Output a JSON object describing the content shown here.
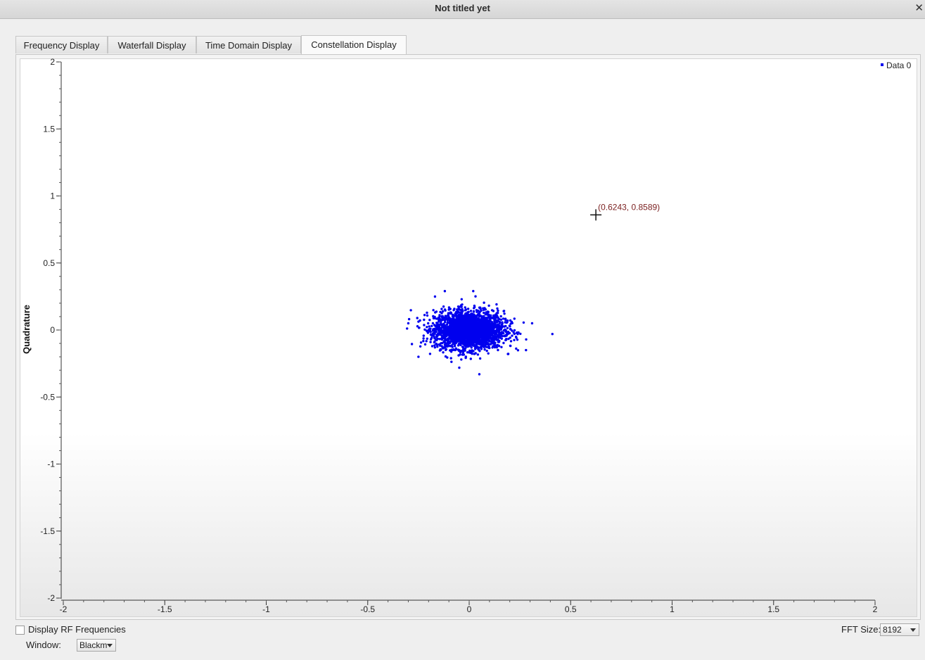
{
  "window": {
    "title": "Not titled yet",
    "close_glyph": "✕"
  },
  "tabs": [
    {
      "label": "Frequency Display",
      "active": false
    },
    {
      "label": "Waterfall Display",
      "active": false
    },
    {
      "label": "Time Domain Display",
      "active": false
    },
    {
      "label": "Constellation Display",
      "active": true
    }
  ],
  "controls": {
    "rf_checkbox_label": "Display RF Frequencies",
    "rf_checked": false,
    "fft_size_label": "FFT Size:",
    "fft_size_value": "8192",
    "window_label": "Window:",
    "window_value": "Blackm"
  },
  "chart_data": {
    "type": "scatter",
    "ylabel": "Quadrature",
    "xlabel": "",
    "xlim": [
      -2,
      2
    ],
    "ylim": [
      -2,
      2
    ],
    "x_ticks": [
      "-2",
      "-1.5",
      "-1",
      "-0.5",
      "0",
      "0.5",
      "1",
      "1.5",
      "2"
    ],
    "y_ticks": [
      "2",
      "1.5",
      "1",
      "0.5",
      "0",
      "-0.5",
      "-1",
      "-1.5",
      "-2"
    ],
    "legend": {
      "position": "top-right",
      "entries": [
        {
          "name": "Data 0",
          "color": "#0000ee"
        }
      ]
    },
    "cursor": {
      "x": 0.6243,
      "y": 0.8589,
      "label": "(0.6243, 0.8589)",
      "label_color": "#7a1f1f"
    },
    "series": [
      {
        "name": "Data 0",
        "color": "#0000ee",
        "cloud": {
          "center_x": 0.0,
          "center_y": 0.0,
          "sigma_x": 0.085,
          "sigma_y": 0.07,
          "count": 2600
        },
        "outliers": [
          [
            0.41,
            -0.03
          ],
          [
            0.31,
            0.05
          ],
          [
            -0.3,
            0.05
          ],
          [
            0.28,
            -0.15
          ],
          [
            -0.25,
            -0.2
          ],
          [
            0.02,
            0.29
          ],
          [
            -0.12,
            0.29
          ],
          [
            0.05,
            -0.33
          ]
        ]
      }
    ]
  }
}
